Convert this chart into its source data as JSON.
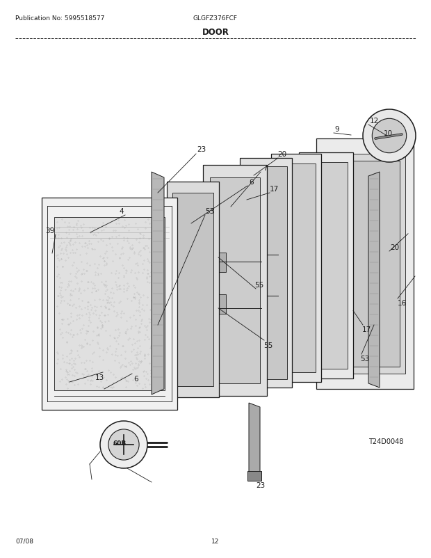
{
  "title": "DOOR",
  "pub_no": "Publication No: 5995518577",
  "model": "GLGFZ376FCF",
  "diagram_ref": "T24D0048",
  "date": "07/08",
  "page": "12",
  "bg_color": "#ffffff",
  "lc": "#1a1a1a",
  "gray1": "#aaaaaa",
  "gray2": "#cccccc",
  "gray3": "#e8e8e8",
  "gray4": "#f2f2f2"
}
